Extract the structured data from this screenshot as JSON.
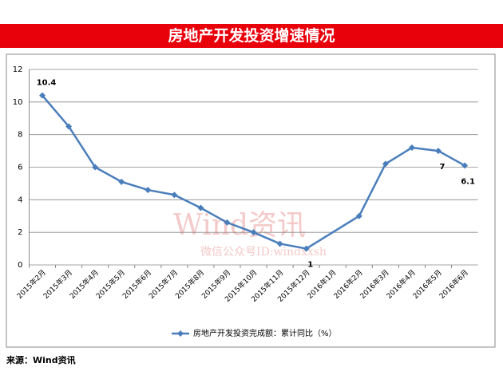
{
  "chart_data": {
    "type": "line",
    "title": "房地产开发投资增速情况",
    "categories": [
      "2015年2月",
      "2015年3月",
      "2015年4月",
      "2015年5月",
      "2015年6月",
      "2015年7月",
      "2015年8月",
      "2015年9月",
      "2015年10月",
      "2015年11月",
      "2015年12月",
      "2016年1月",
      "2016年2月",
      "2016年3月",
      "2016年4月",
      "2016年5月",
      "2016年6月"
    ],
    "series": [
      {
        "name": "房地产开发投资完成额：累计同比（%）",
        "color": "#4a7ebb",
        "values": [
          10.4,
          8.5,
          6.0,
          5.1,
          4.6,
          4.3,
          3.5,
          2.6,
          2.0,
          1.3,
          1.0,
          null,
          3.0,
          6.2,
          7.2,
          7.0,
          6.1
        ]
      }
    ],
    "labeled_points": [
      0,
      10,
      15,
      16
    ],
    "span_gaps": true,
    "ylim": [
      0,
      12
    ],
    "yticks": [
      0,
      2,
      4,
      6,
      8,
      10,
      12
    ],
    "grid": true,
    "watermark": [
      "Wind资讯",
      "微信公众号ID:windxxsh"
    ],
    "source": "来源：Wind资讯"
  }
}
